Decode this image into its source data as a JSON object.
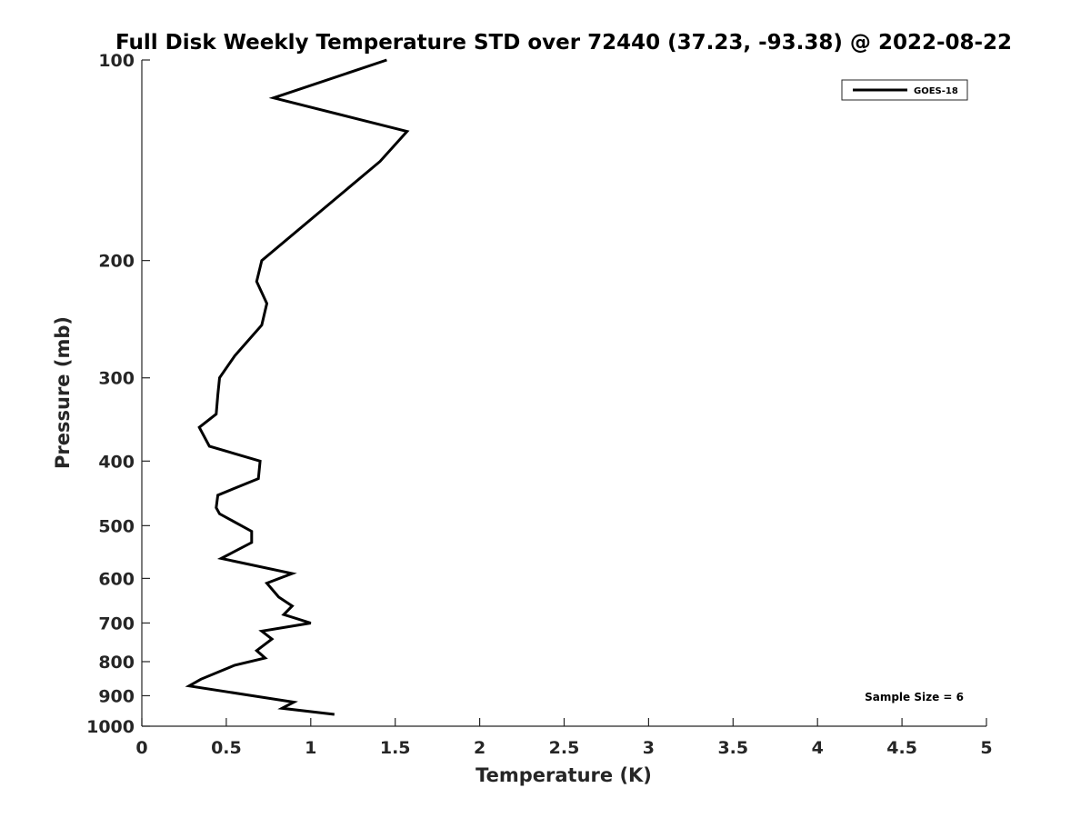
{
  "chart_data": {
    "type": "line",
    "title": "Full Disk Weekly Temperature STD over 72440 (37.23, -93.38) @ 2022-08-22",
    "xlabel": "Temperature (K)",
    "ylabel": "Pressure (mb)",
    "xlim": [
      0,
      5
    ],
    "ylim": [
      1000,
      100
    ],
    "y_scale": "log",
    "y_reversed": true,
    "x_ticks": [
      0,
      0.5,
      1,
      1.5,
      2,
      2.5,
      3,
      3.5,
      4,
      4.5,
      5
    ],
    "x_tick_labels": [
      "0",
      "0.5",
      "1",
      "1.5",
      "2",
      "2.5",
      "3",
      "3.5",
      "4",
      "4.5",
      "5"
    ],
    "y_ticks": [
      100,
      200,
      300,
      400,
      500,
      600,
      700,
      800,
      900,
      1000
    ],
    "y_tick_labels": [
      "100",
      "200",
      "300",
      "400",
      "500",
      "600",
      "700",
      "800",
      "900",
      "1000"
    ],
    "grid": false,
    "legend_position": "top-right",
    "line_color": "#000000",
    "series": [
      {
        "name": "GOES-18",
        "x": [
          1.45,
          0.78,
          1.57,
          1.41,
          0.71,
          0.68,
          0.74,
          0.71,
          0.55,
          0.46,
          0.45,
          0.44,
          0.34,
          0.4,
          0.7,
          0.69,
          0.45,
          0.44,
          0.46,
          0.65,
          0.65,
          0.47,
          0.89,
          0.74,
          0.81,
          0.89,
          0.84,
          1.0,
          0.71,
          0.77,
          0.68,
          0.73,
          0.55,
          0.35,
          0.28,
          0.9,
          0.83,
          1.14
        ],
        "y": [
          100,
          114,
          128,
          142,
          200,
          215,
          232,
          250,
          278,
          300,
          318,
          340,
          356,
          380,
          400,
          425,
          450,
          470,
          480,
          510,
          530,
          560,
          590,
          610,
          640,
          660,
          680,
          700,
          720,
          740,
          770,
          790,
          810,
          850,
          870,
          920,
          940,
          960
        ]
      }
    ],
    "annotations": [
      "Sample Size = 6"
    ]
  }
}
